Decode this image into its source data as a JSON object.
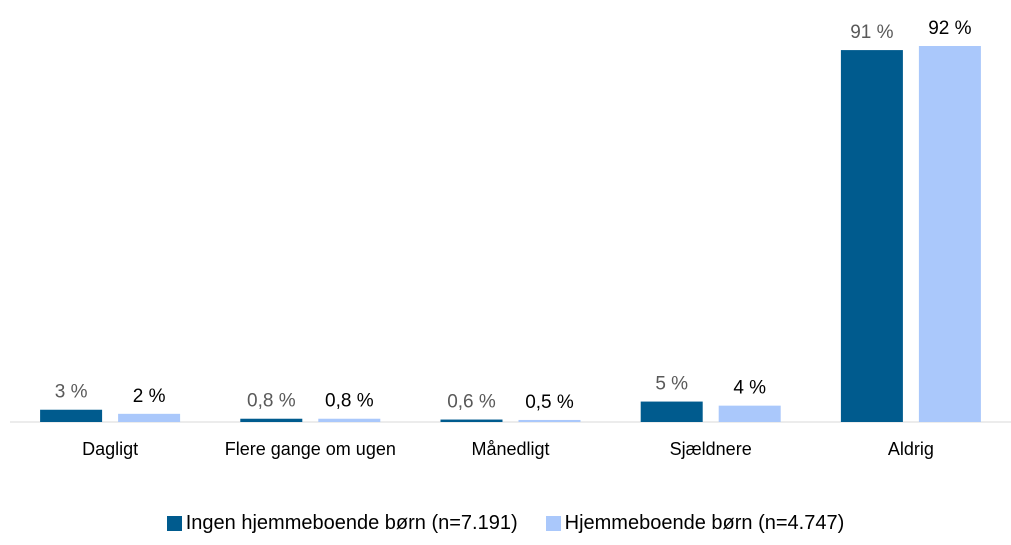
{
  "chart_data": {
    "type": "bar",
    "categories": [
      "Dagligt",
      "Flere gange om ugen",
      "Månedligt",
      "Sjældnere",
      "Aldrig"
    ],
    "series": [
      {
        "name": "Ingen hjemmeboende børn (n=7.191)",
        "color": "#005b8e",
        "label_color": "#595959",
        "values": [
          3,
          0.8,
          0.6,
          5,
          91
        ],
        "value_labels": [
          "3 %",
          "0,8 %",
          "0,6 %",
          "5 %",
          "91 %"
        ]
      },
      {
        "name": "Hjemmeboende børn (n=4.747)",
        "color": "#aac8fb",
        "label_color": "#000000",
        "values": [
          2,
          0.8,
          0.5,
          4,
          92
        ],
        "value_labels": [
          "2 %",
          "0,8 %",
          "0,5 %",
          "4 %",
          "92 %"
        ]
      }
    ],
    "legend": "bottom"
  }
}
